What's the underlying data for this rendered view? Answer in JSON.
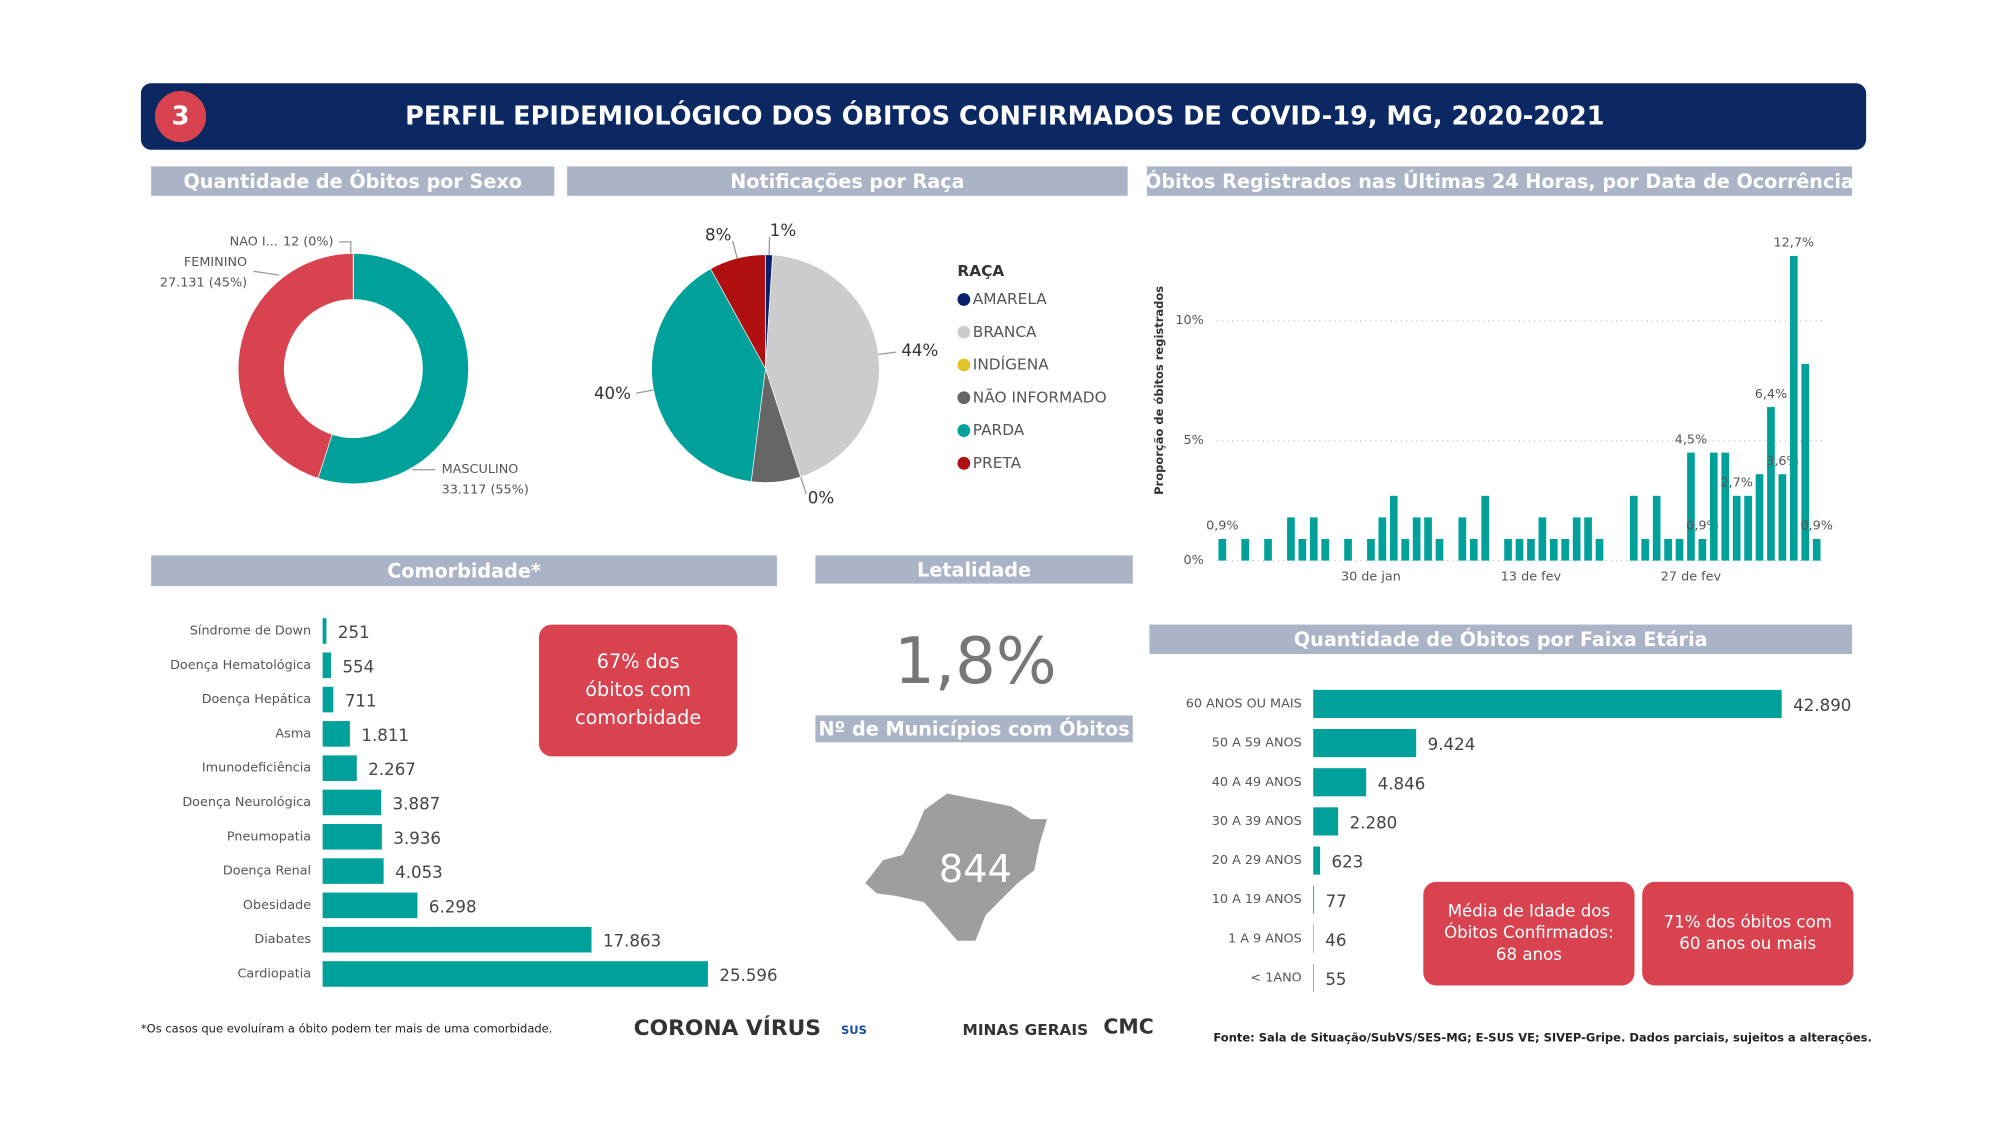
{
  "header": {
    "number": "3",
    "title": "PERFIL EPIDEMIOLÓGICO DOS ÓBITOS CONFIRMADOS DE COVID-19, MG, 2020-2021"
  },
  "chart_data": [
    {
      "type": "pie",
      "donut": true,
      "title": "Quantidade de Óbitos por Sexo",
      "categories": [
        "MASCULINO",
        "FEMININO",
        "NAO I..."
      ],
      "values": [
        33117,
        27131,
        12
      ],
      "value_labels": [
        "33.117 (55%)",
        "27.131 (45%)",
        "12 (0%)"
      ],
      "colors": [
        "#00a19a",
        "#d8434f",
        "#1f2f6b"
      ]
    },
    {
      "type": "pie",
      "donut": false,
      "title": "Notificações por Raça",
      "legend_title": "RAÇA",
      "categories": [
        "AMARELA",
        "BRANCA",
        "INDÍGENA",
        "NÃO INFORMADO",
        "PARDA",
        "PRETA"
      ],
      "values": [
        1,
        44,
        0,
        7,
        40,
        8
      ],
      "value_labels": [
        "1%",
        "44%",
        "0%",
        null,
        "40%",
        "8%"
      ],
      "colors": [
        "#0a1f6b",
        "#cccccc",
        "#e3c22a",
        "#666666",
        "#00a19a",
        "#b01010"
      ]
    },
    {
      "type": "bar",
      "title": "Óbitos Registrados nas Últimas 24 Horas, por Data de Ocorrência",
      "y_label": "Proporção de óbitos registrados",
      "categories": [
        null,
        null,
        null,
        null,
        null,
        null,
        null,
        null,
        null,
        null,
        null,
        null,
        null,
        "30 de jan",
        null,
        null,
        null,
        null,
        null,
        null,
        null,
        null,
        null,
        null,
        null,
        null,
        null,
        "13 de fev",
        null,
        null,
        null,
        null,
        null,
        null,
        null,
        null,
        null,
        null,
        null,
        null,
        null,
        "27 de fev",
        null,
        null,
        null,
        null,
        null,
        null,
        null,
        null,
        null,
        null,
        null
      ],
      "values": [
        0.9,
        0,
        0.9,
        0,
        0.9,
        0,
        1.8,
        0.9,
        1.8,
        0.9,
        0,
        0.9,
        0,
        0.9,
        1.8,
        2.7,
        0.9,
        1.8,
        1.8,
        0.9,
        0,
        1.8,
        0.9,
        2.7,
        0,
        0.9,
        0.9,
        0.9,
        1.8,
        0.9,
        0.9,
        1.8,
        1.8,
        0.9,
        0,
        0,
        2.7,
        0.9,
        2.7,
        0.9,
        0.9,
        4.5,
        0.9,
        4.5,
        4.5,
        2.7,
        2.7,
        3.6,
        6.4,
        3.6,
        12.7,
        8.2,
        0.9
      ],
      "value_labels": [
        "0,9%",
        null,
        null,
        null,
        null,
        null,
        null,
        null,
        null,
        null,
        null,
        null,
        null,
        null,
        null,
        null,
        null,
        null,
        null,
        null,
        null,
        null,
        null,
        null,
        null,
        null,
        null,
        null,
        null,
        null,
        null,
        null,
        null,
        null,
        null,
        null,
        null,
        null,
        null,
        null,
        null,
        "4,5%",
        "0,9%",
        null,
        null,
        "2,7%",
        null,
        null,
        "6,4%",
        "3,6%",
        "12,7%",
        null,
        "0,9%"
      ],
      "color": "#00a19a",
      "ylim": [
        0,
        13.5
      ],
      "yticks": [
        {
          "value": 0,
          "label": "0%"
        },
        {
          "value": 5,
          "label": "5%"
        },
        {
          "value": 10,
          "label": "10%"
        }
      ],
      "grid": true
    },
    {
      "type": "hbar",
      "title": "Comorbidade*",
      "categories": [
        "Síndrome de Down",
        "Doença Hematológica",
        "Doença Hepática",
        "Asma",
        "Imunodeficiência",
        "Doença Neurológica",
        "Pneumopatia",
        "Doença Renal",
        "Obesidade",
        "Diabates",
        "Cardiopatia"
      ],
      "values": [
        251,
        554,
        711,
        1811,
        2267,
        3887,
        3936,
        4053,
        6298,
        17863,
        25596
      ],
      "value_labels": [
        "251",
        "554",
        "711",
        "1.811",
        "2.267",
        "3.887",
        "3.936",
        "4.053",
        "6.298",
        "17.863",
        "25.596"
      ],
      "color": "#00a19a"
    },
    {
      "type": "hbar",
      "title": "Quantidade de Óbitos por Faixa Etária",
      "categories": [
        "60 ANOS OU MAIS",
        "50 A 59 ANOS",
        "40 A 49 ANOS",
        "30 A 39 ANOS",
        "20 A 29 ANOS",
        "10 A 19 ANOS",
        "1 A 9 ANOS",
        "< 1ANO"
      ],
      "values": [
        42890,
        9424,
        4846,
        2280,
        623,
        77,
        46,
        55
      ],
      "value_labels": [
        "42.890",
        "9.424",
        "4.846",
        "2.280",
        "623",
        "77",
        "46",
        "55"
      ],
      "color": "#00a19a"
    }
  ],
  "kpis": {
    "letalidade": {
      "title": "Letalidade",
      "value": "1,8%"
    },
    "municipios": {
      "title": "Nº de Municípios com Óbitos",
      "value": "844"
    }
  },
  "callouts": [
    {
      "lines": [
        "67% dos",
        "óbitos com",
        "comorbidade"
      ]
    },
    {
      "lines": [
        "Média de Idade dos",
        "Óbitos Confirmados:",
        "68 anos"
      ]
    },
    {
      "lines": [
        "71% dos óbitos com",
        "60 anos ou mais"
      ]
    }
  ],
  "footer": {
    "note": "*Os casos que evoluíram a óbito podem ter mais de uma comorbidade.",
    "source": "Fonte: Sala de Situação/SubVS/SES-MG; E-SUS VE; SIVEP-Gripe. Dados parciais, sujeitos a alterações.",
    "logos": [
      "CORONA VÍRUS",
      "SUS",
      "MINAS GERAIS",
      "CMC"
    ]
  }
}
